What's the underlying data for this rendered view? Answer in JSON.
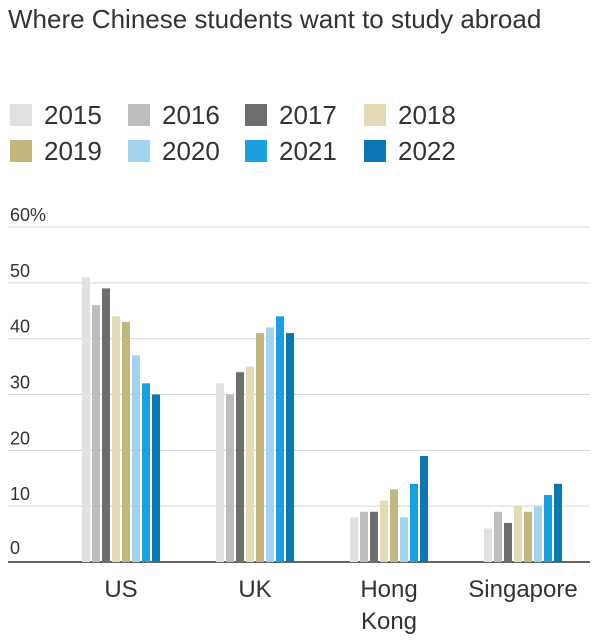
{
  "chart_data": {
    "type": "bar",
    "title": "Where Chinese students want to study abroad",
    "categories": [
      "US",
      "UK",
      "Hong Kong",
      "Singapore"
    ],
    "series": [
      {
        "name": "2015",
        "color": "#e1e1e1",
        "values": [
          51,
          32,
          8,
          6
        ]
      },
      {
        "name": "2016",
        "color": "#bdbdbd",
        "values": [
          46,
          30,
          9,
          9
        ]
      },
      {
        "name": "2017",
        "color": "#6e6e6e",
        "values": [
          49,
          34,
          9,
          7
        ]
      },
      {
        "name": "2018",
        "color": "#e3dbb5",
        "values": [
          44,
          35,
          11,
          10
        ]
      },
      {
        "name": "2019",
        "color": "#c2b77e",
        "values": [
          43,
          41,
          13,
          9
        ]
      },
      {
        "name": "2020",
        "color": "#a3d2ef",
        "values": [
          37,
          42,
          8,
          10
        ]
      },
      {
        "name": "2021",
        "color": "#1a9fe0",
        "values": [
          32,
          44,
          14,
          12
        ]
      },
      {
        "name": "2022",
        "color": "#0a78b3",
        "values": [
          30,
          41,
          19,
          14
        ]
      }
    ],
    "ylim": [
      0,
      60
    ],
    "yticks": [
      "0",
      "10",
      "20",
      "30",
      "40",
      "50",
      "60%"
    ],
    "xlabel": "",
    "ylabel": "",
    "grid": true,
    "legend": "top"
  }
}
